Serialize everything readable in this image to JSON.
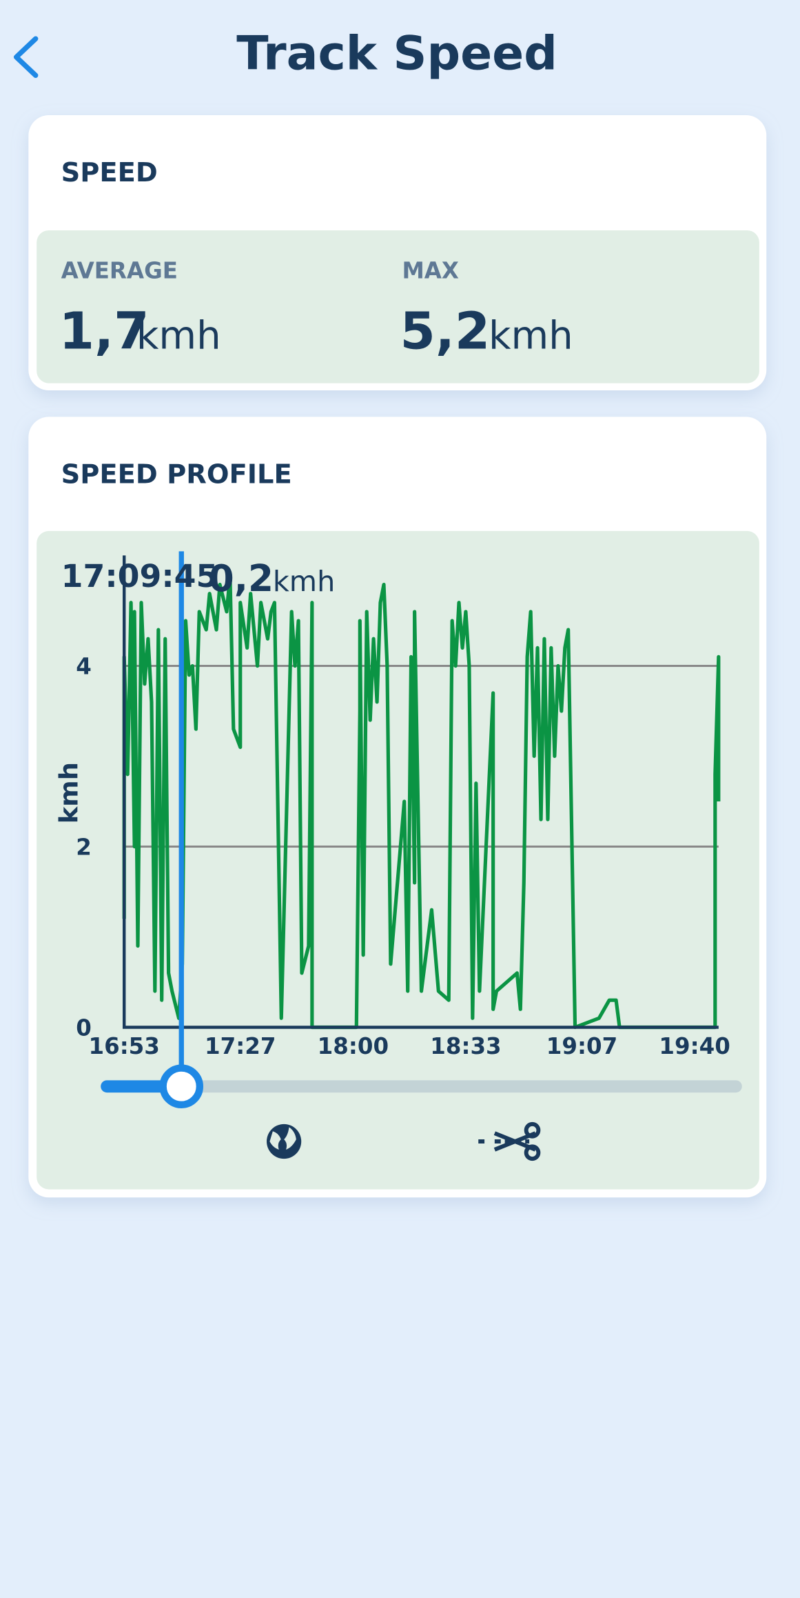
{
  "header": {
    "title": "Track Speed"
  },
  "speed": {
    "title": "SPEED",
    "average": {
      "label": "AVERAGE",
      "value": "1,7",
      "unit": "kmh"
    },
    "max": {
      "label": "MAX",
      "value": "5,2",
      "unit": "kmh"
    }
  },
  "profile": {
    "title": "SPEED PROFILE",
    "readout": {
      "time": "17:09:45",
      "value": "0,2",
      "unit": "kmh"
    }
  },
  "chart_data": {
    "type": "line",
    "ylabel": "kmh",
    "color": "#0b9444",
    "x": [
      "16:53",
      "16:53",
      "16:54",
      "16:55",
      "16:56",
      "16:56",
      "16:57",
      "16:58",
      "16:59",
      "17:00",
      "17:01",
      "17:02",
      "17:03",
      "17:04",
      "17:05",
      "17:06",
      "17:07",
      "17:09",
      "17:10",
      "17:11",
      "17:12",
      "17:13",
      "17:14",
      "17:15",
      "17:17",
      "17:18",
      "17:20",
      "17:21",
      "17:23",
      "17:24",
      "17:25",
      "17:27",
      "17:27",
      "17:29",
      "17:30",
      "17:32",
      "17:33",
      "17:35",
      "17:36",
      "17:37",
      "17:39",
      "17:42",
      "17:43",
      "17:44",
      "17:45",
      "17:47",
      "17:48",
      "17:48",
      "18:01",
      "18:02",
      "18:02",
      "18:03",
      "18:04",
      "18:05",
      "18:06",
      "18:07",
      "18:08",
      "18:09",
      "18:10",
      "18:11",
      "18:15",
      "18:16",
      "18:17",
      "18:18",
      "18:18",
      "18:20",
      "18:23",
      "18:25",
      "18:28",
      "18:29",
      "18:30",
      "18:31",
      "18:32",
      "18:33",
      "18:34",
      "18:35",
      "18:36",
      "18:37",
      "18:41",
      "18:41",
      "18:42",
      "18:48",
      "18:49",
      "18:50",
      "18:51",
      "18:52",
      "18:53",
      "18:54",
      "18:55",
      "18:56",
      "18:57",
      "18:58",
      "18:59",
      "19:00",
      "19:01",
      "19:02",
      "19:03",
      "19:05",
      "19:12",
      "19:15",
      "19:17",
      "19:18",
      "19:21",
      "19:24",
      "19:46",
      "19:46",
      "19:47",
      "19:47"
    ],
    "values": [
      1.2,
      4.1,
      2.8,
      4.7,
      2.0,
      4.6,
      0.9,
      4.7,
      3.8,
      4.3,
      3.6,
      0.4,
      4.4,
      0.3,
      4.3,
      0.6,
      0.4,
      0.1,
      0.7,
      4.5,
      3.9,
      4.0,
      3.3,
      4.6,
      4.4,
      4.8,
      4.4,
      4.9,
      4.6,
      5.0,
      3.3,
      3.1,
      4.7,
      4.2,
      4.8,
      4.0,
      4.7,
      4.3,
      4.6,
      4.7,
      0.1,
      4.6,
      4.0,
      4.5,
      0.6,
      0.9,
      4.7,
      0.0,
      0.0,
      3.5,
      4.5,
      0.8,
      4.6,
      3.4,
      4.3,
      3.6,
      4.7,
      4.9,
      4.0,
      0.7,
      2.5,
      0.4,
      4.1,
      1.6,
      4.6,
      0.4,
      1.3,
      0.4,
      0.3,
      4.5,
      4.0,
      4.7,
      4.2,
      4.6,
      4.0,
      0.1,
      2.7,
      0.4,
      3.7,
      0.2,
      0.4,
      0.6,
      0.2,
      1.6,
      4.1,
      4.6,
      3.0,
      4.2,
      2.3,
      4.3,
      2.3,
      4.2,
      3.0,
      4.0,
      3.5,
      4.2,
      4.4,
      0.0,
      0.1,
      0.3,
      0.3,
      0.0,
      0.0,
      0.0,
      0.0,
      2.8,
      4.1,
      2.5
    ],
    "xlim": [
      "16:53",
      "19:47"
    ],
    "xticks": [
      "16:53",
      "17:27",
      "18:00",
      "18:33",
      "19:07",
      "19:40"
    ],
    "ylim": [
      0,
      5.2
    ],
    "yticks": [
      0,
      2,
      4
    ],
    "grid": true
  }
}
